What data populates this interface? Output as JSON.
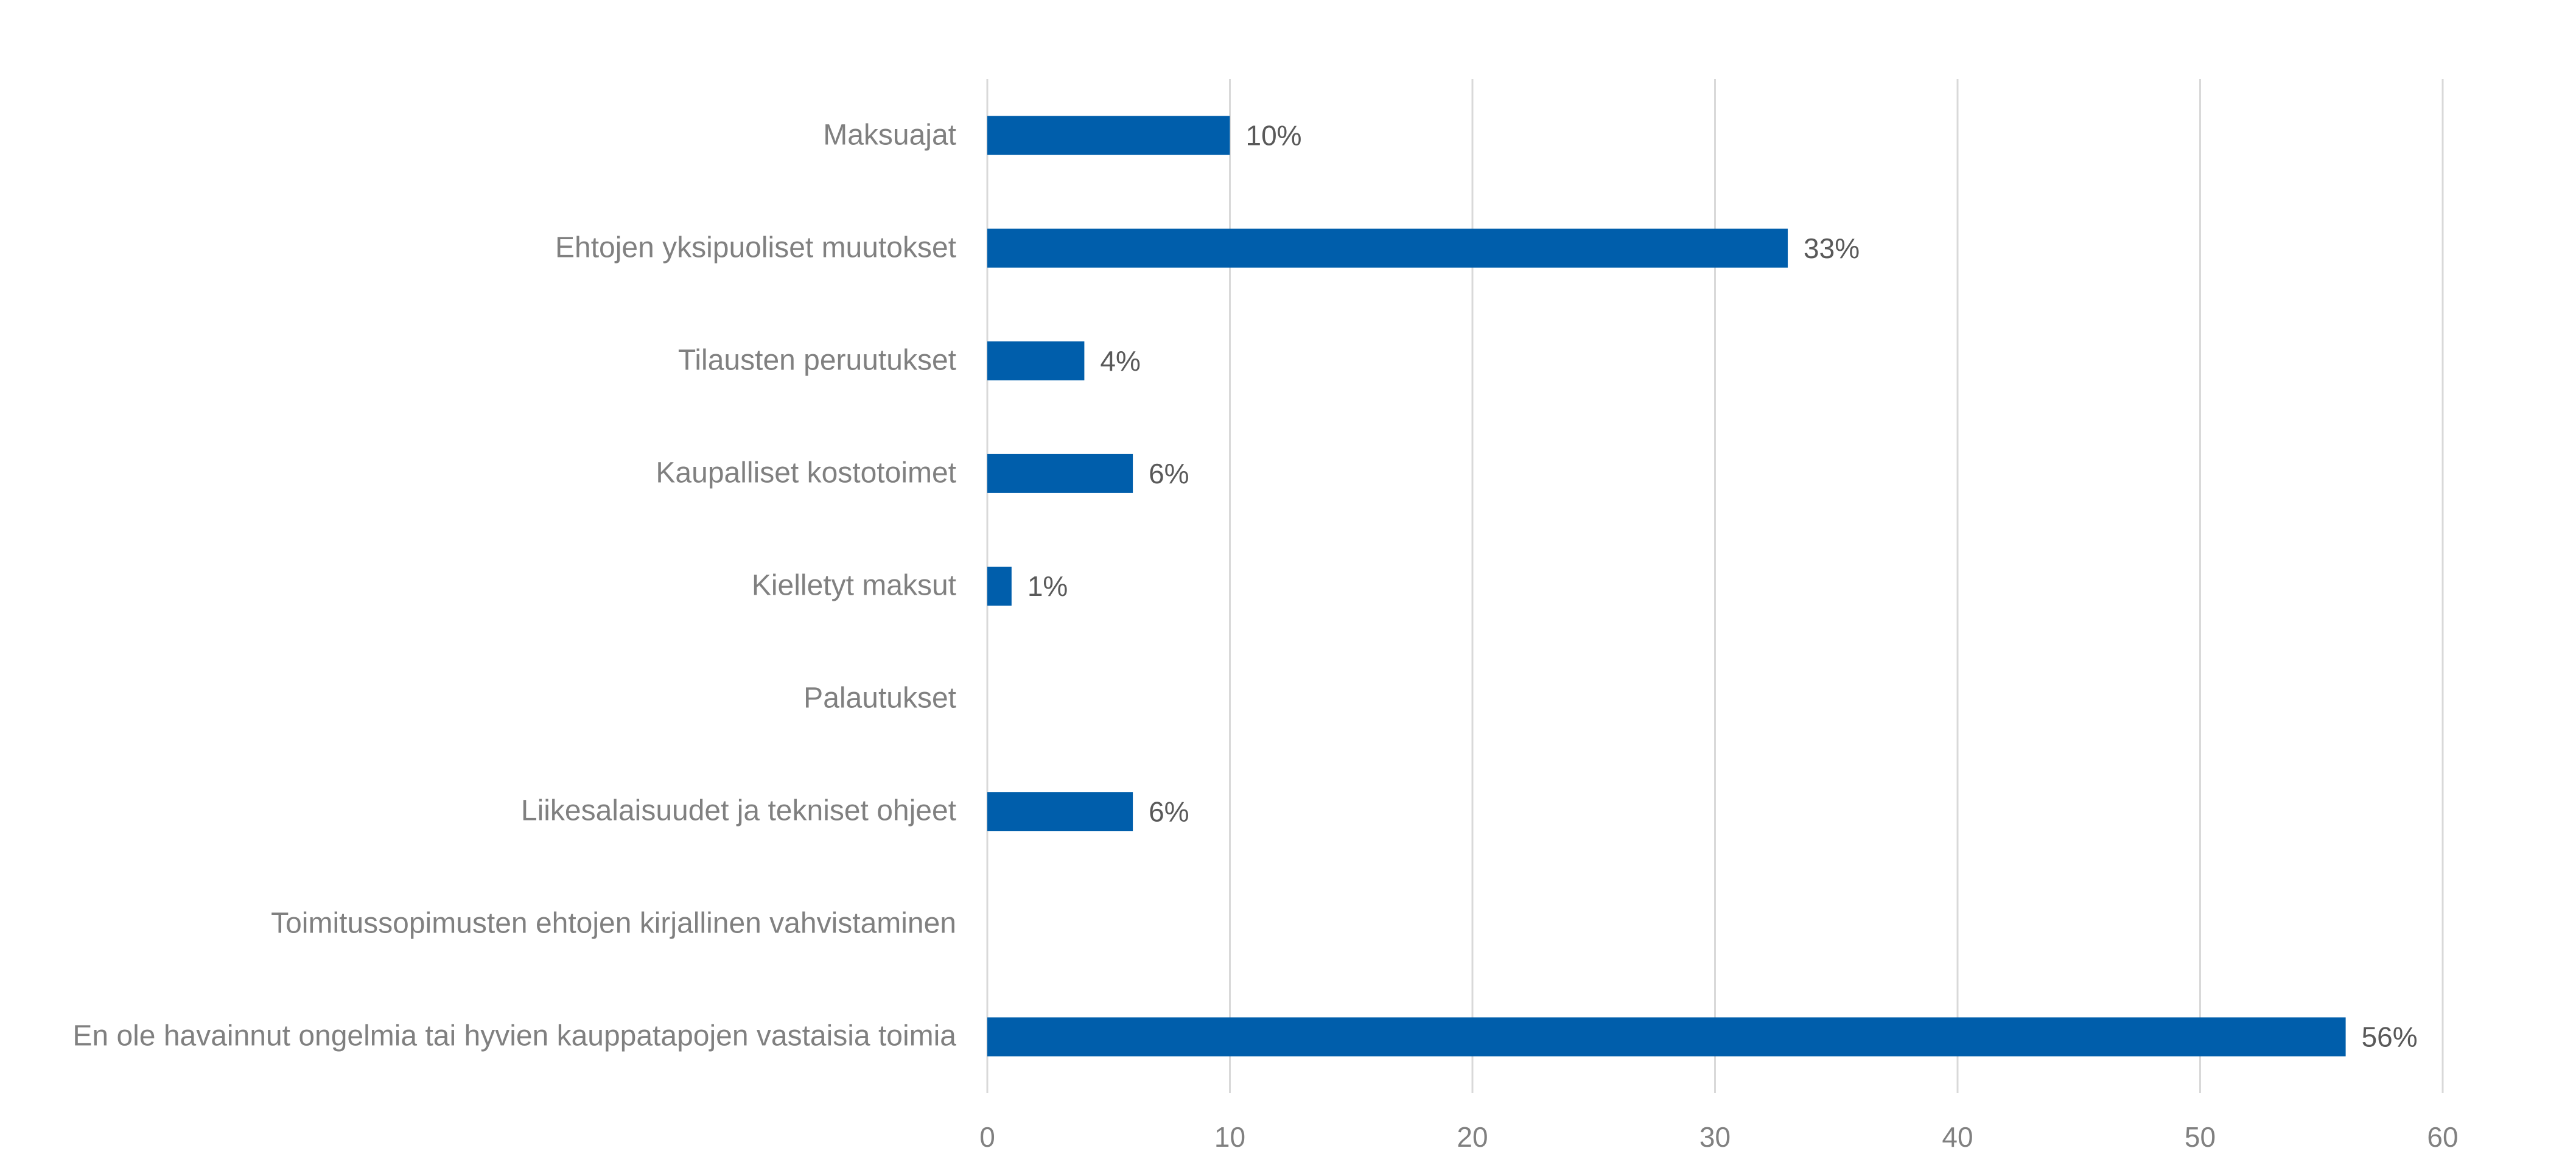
{
  "chart_data": {
    "type": "bar",
    "orientation": "horizontal",
    "categories": [
      "Maksuajat",
      "Ehtojen yksipuoliset muutokset",
      "Tilausten peruutukset",
      "Kaupalliset kostotoimet",
      "Kielletyt maksut",
      "Palautukset",
      "Liikesalaisuudet ja tekniset ohjeet",
      "Toimitussopimusten ehtojen kirjallinen vahvistaminen",
      "En ole havainnut ongelmia tai hyvien kauppatapojen vastaisia toimia"
    ],
    "values": [
      10,
      33,
      4,
      6,
      1,
      null,
      6,
      null,
      56
    ],
    "value_labels": [
      "10%",
      "33%",
      "4%",
      "6%",
      "1%",
      null,
      "6%",
      null,
      "56%"
    ],
    "color": "#005eab",
    "xlim": [
      0,
      60
    ],
    "xticks": [
      0,
      10,
      20,
      30,
      40,
      50,
      60
    ],
    "grid": true
  }
}
